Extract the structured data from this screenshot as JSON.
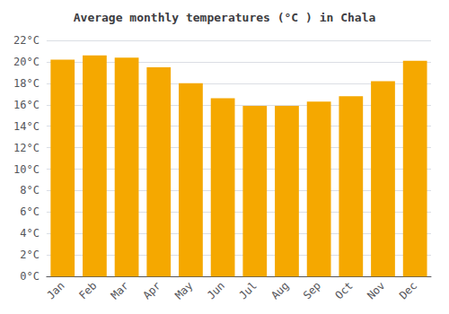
{
  "chart_data": {
    "type": "bar",
    "title": "Average monthly temperatures (°C ) in Chala",
    "categories": [
      "Jan",
      "Feb",
      "Mar",
      "Apr",
      "May",
      "Jun",
      "Jul",
      "Aug",
      "Sep",
      "Oct",
      "Nov",
      "Dec"
    ],
    "values": [
      20.2,
      20.6,
      20.4,
      19.5,
      18.0,
      16.6,
      15.9,
      15.9,
      16.3,
      16.8,
      18.2,
      20.1
    ],
    "color": "#F5A800",
    "ylim": [
      0,
      22
    ],
    "yticks": [
      {
        "value": 0,
        "label": "0°C"
      },
      {
        "value": 2,
        "label": "2°C"
      },
      {
        "value": 4,
        "label": "4°C"
      },
      {
        "value": 6,
        "label": "6°C"
      },
      {
        "value": 8,
        "label": "8°C"
      },
      {
        "value": 10,
        "label": "10°C"
      },
      {
        "value": 12,
        "label": "12°C"
      },
      {
        "value": 14,
        "label": "14°C"
      },
      {
        "value": 16,
        "label": "16°C"
      },
      {
        "value": 18,
        "label": "18°C"
      },
      {
        "value": 20,
        "label": "20°C"
      },
      {
        "value": 22,
        "label": "22°C"
      }
    ],
    "grid": true
  }
}
